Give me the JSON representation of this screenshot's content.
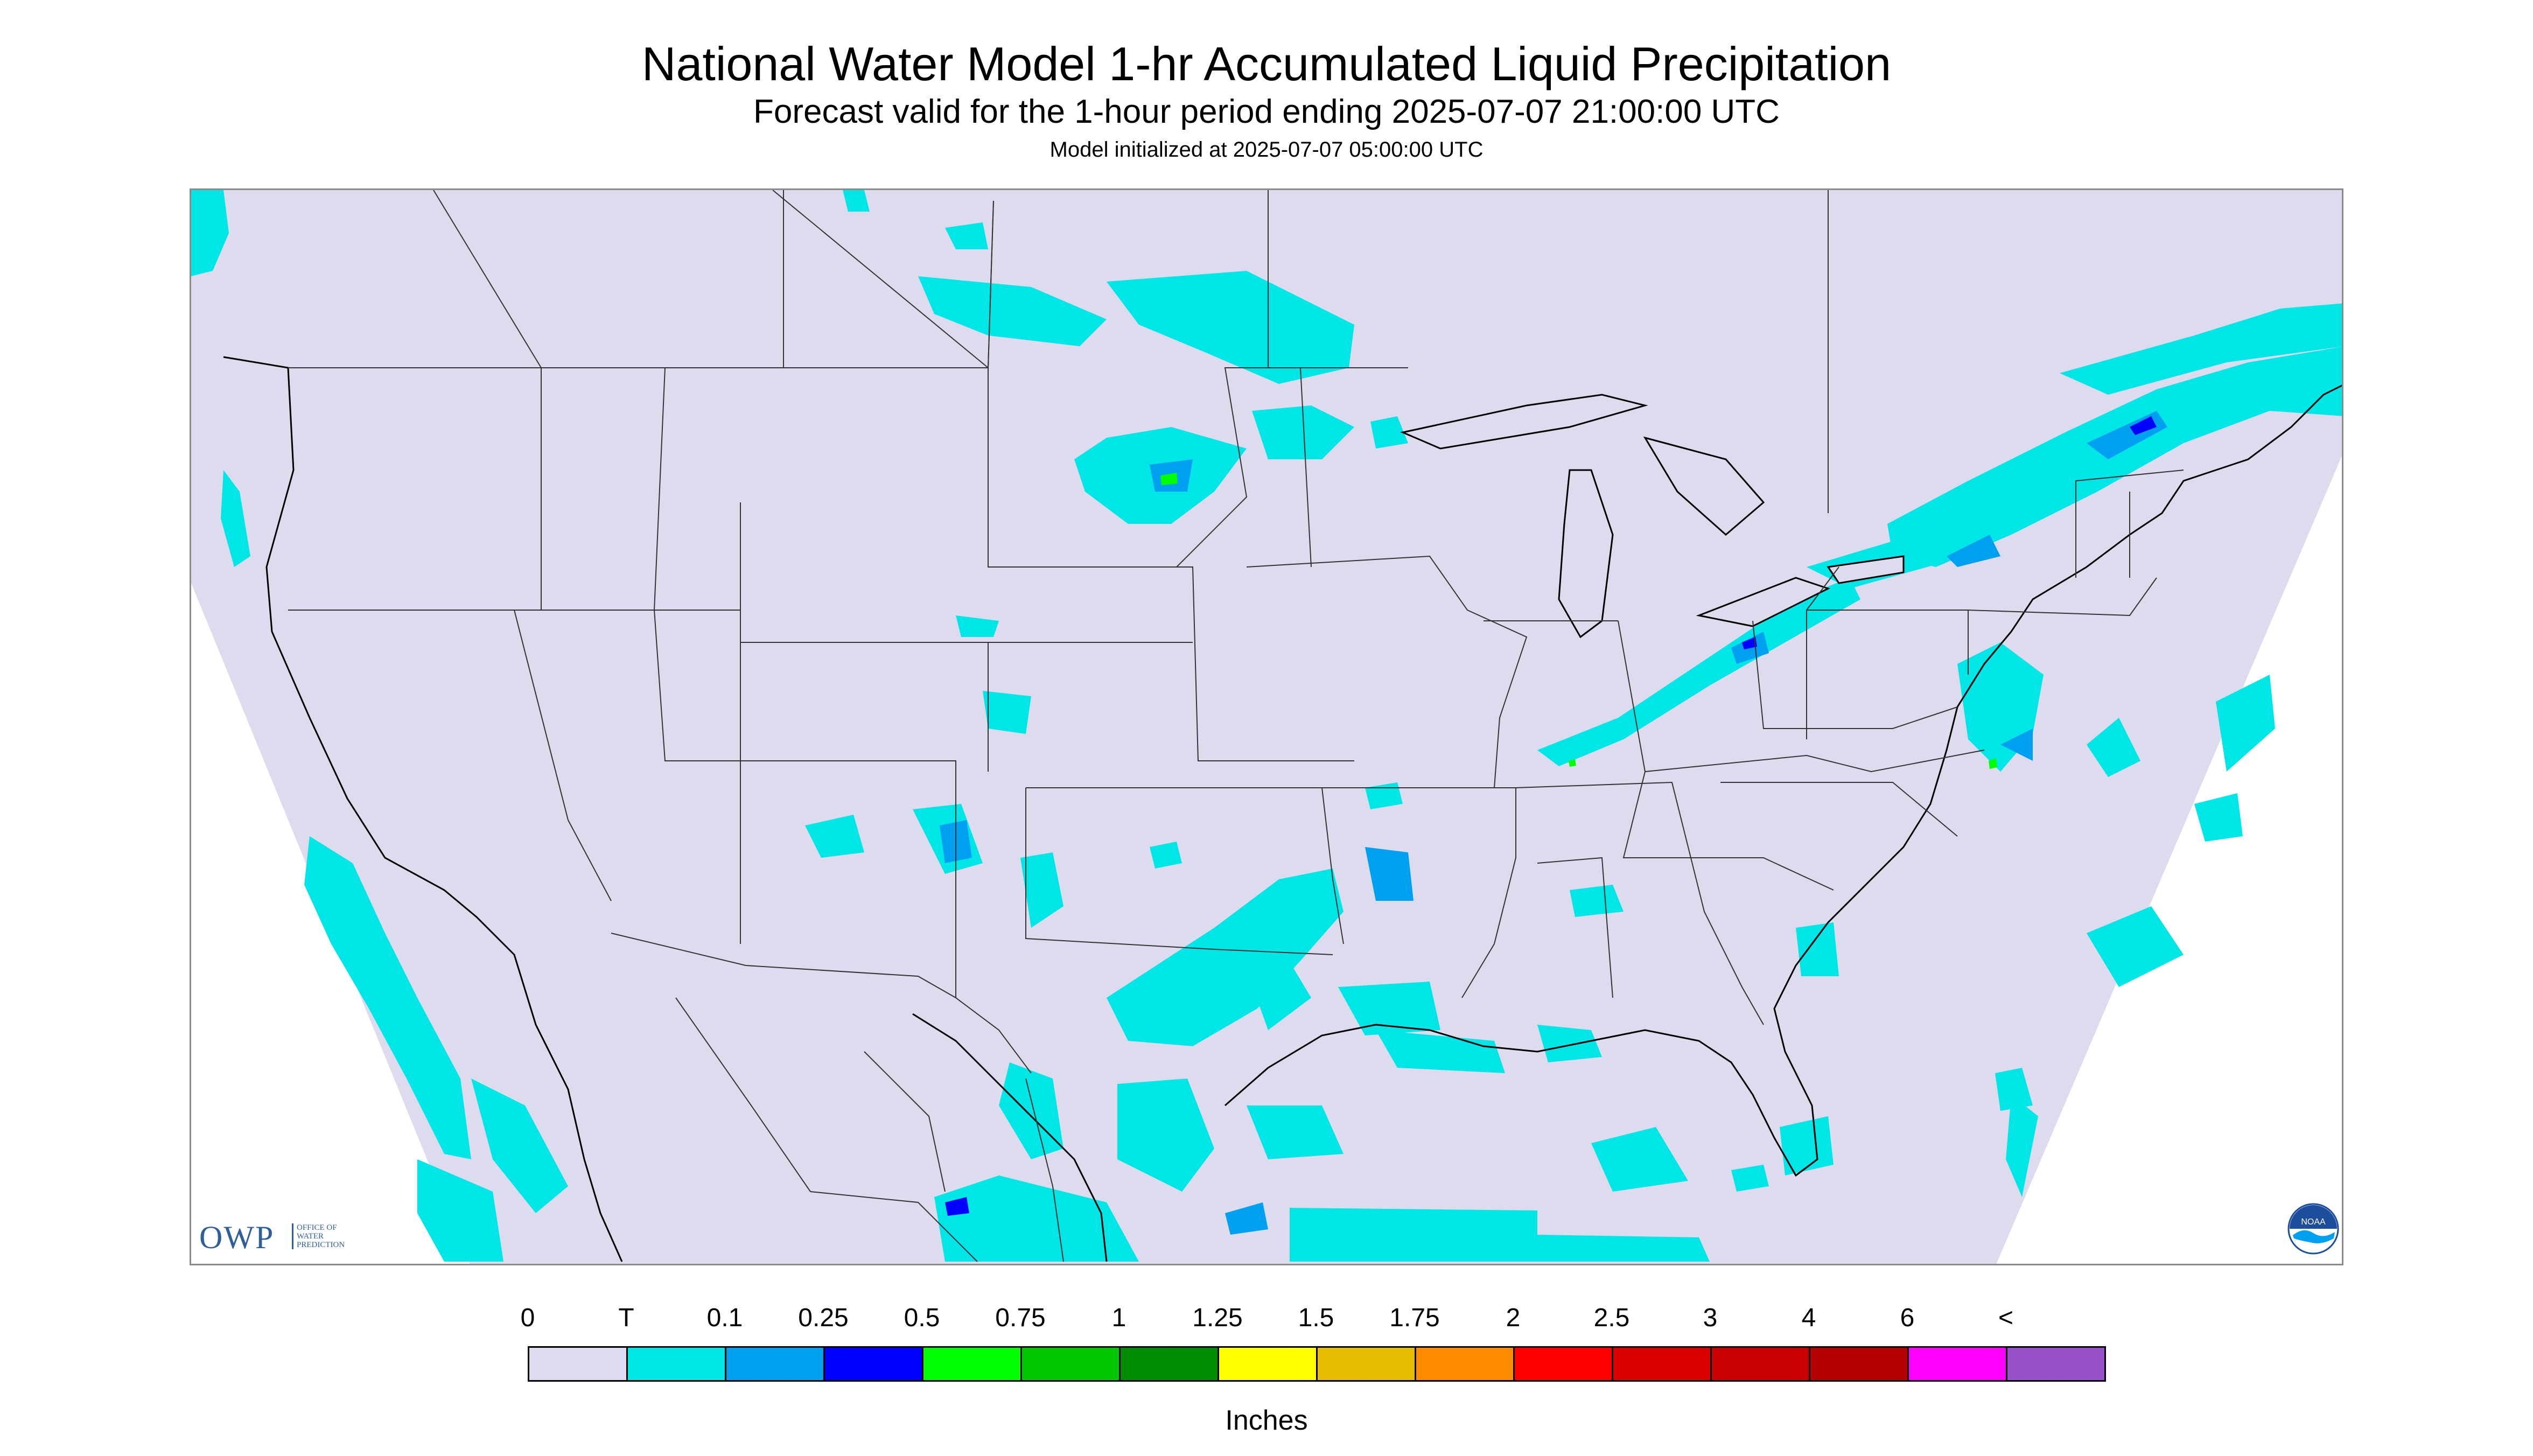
{
  "title": "National Water Model 1-hr Accumulated Liquid Precipitation",
  "subtitle": "Forecast valid for the 1-hour period ending 2025-07-07 21:00:00 UTC",
  "init_line": "Model initialized at 2025-07-07 05:00:00 UTC",
  "map": {
    "region": "Contiguous United States",
    "background_color": "#dcdcee",
    "outside_domain_color": "#ffffff",
    "boundary_color": "#000000"
  },
  "logos": {
    "owp_letters": "OWP",
    "owp_text": "OFFICE OF WATER PREDICTION",
    "noaa_text": "NOAA"
  },
  "legend": {
    "labels": [
      "0",
      "T",
      "0.1",
      "0.25",
      "0.5",
      "0.75",
      "1",
      "1.25",
      "1.5",
      "1.75",
      "2",
      "2.5",
      "3",
      "4",
      "6",
      "<"
    ],
    "colors": [
      "#dcdcee",
      "#00e6e6",
      "#00a0f0",
      "#0000ff",
      "#00ff00",
      "#00c800",
      "#008c00",
      "#ffff00",
      "#e6be00",
      "#ff8c00",
      "#ff0000",
      "#dc0000",
      "#c80000",
      "#b40000",
      "#ff00ff",
      "#9650c8"
    ],
    "units": "Inches"
  }
}
